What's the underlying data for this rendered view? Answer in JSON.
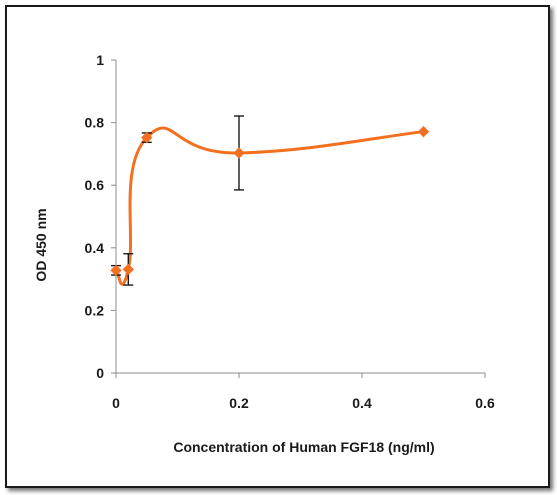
{
  "chart_data": {
    "type": "line",
    "title": "",
    "xlabel": "Concentration of Human FGF18 (ng/ml)",
    "ylabel": "OD 450 nm",
    "xlim": [
      0,
      0.6
    ],
    "ylim": [
      0,
      1
    ],
    "x_ticks": [
      "0",
      "0.2",
      "0.4",
      "0.6"
    ],
    "y_ticks": [
      "0",
      "0.2",
      "0.4",
      "0.6",
      "0.8",
      "1"
    ],
    "x_tick_values": [
      0,
      0.2,
      0.4,
      0.6
    ],
    "y_tick_values": [
      0,
      0.2,
      0.4,
      0.6,
      0.8,
      1
    ],
    "grid": false,
    "smooth": true,
    "marker": "diamond",
    "color": "#f37021",
    "series": [
      {
        "x": [
          0,
          0.02,
          0.05,
          0.2,
          0.5
        ],
        "values": [
          0.328,
          0.331,
          0.752,
          0.703,
          0.771
        ],
        "error": [
          0.015,
          0.05,
          0.015,
          0.118,
          0
        ]
      }
    ]
  }
}
